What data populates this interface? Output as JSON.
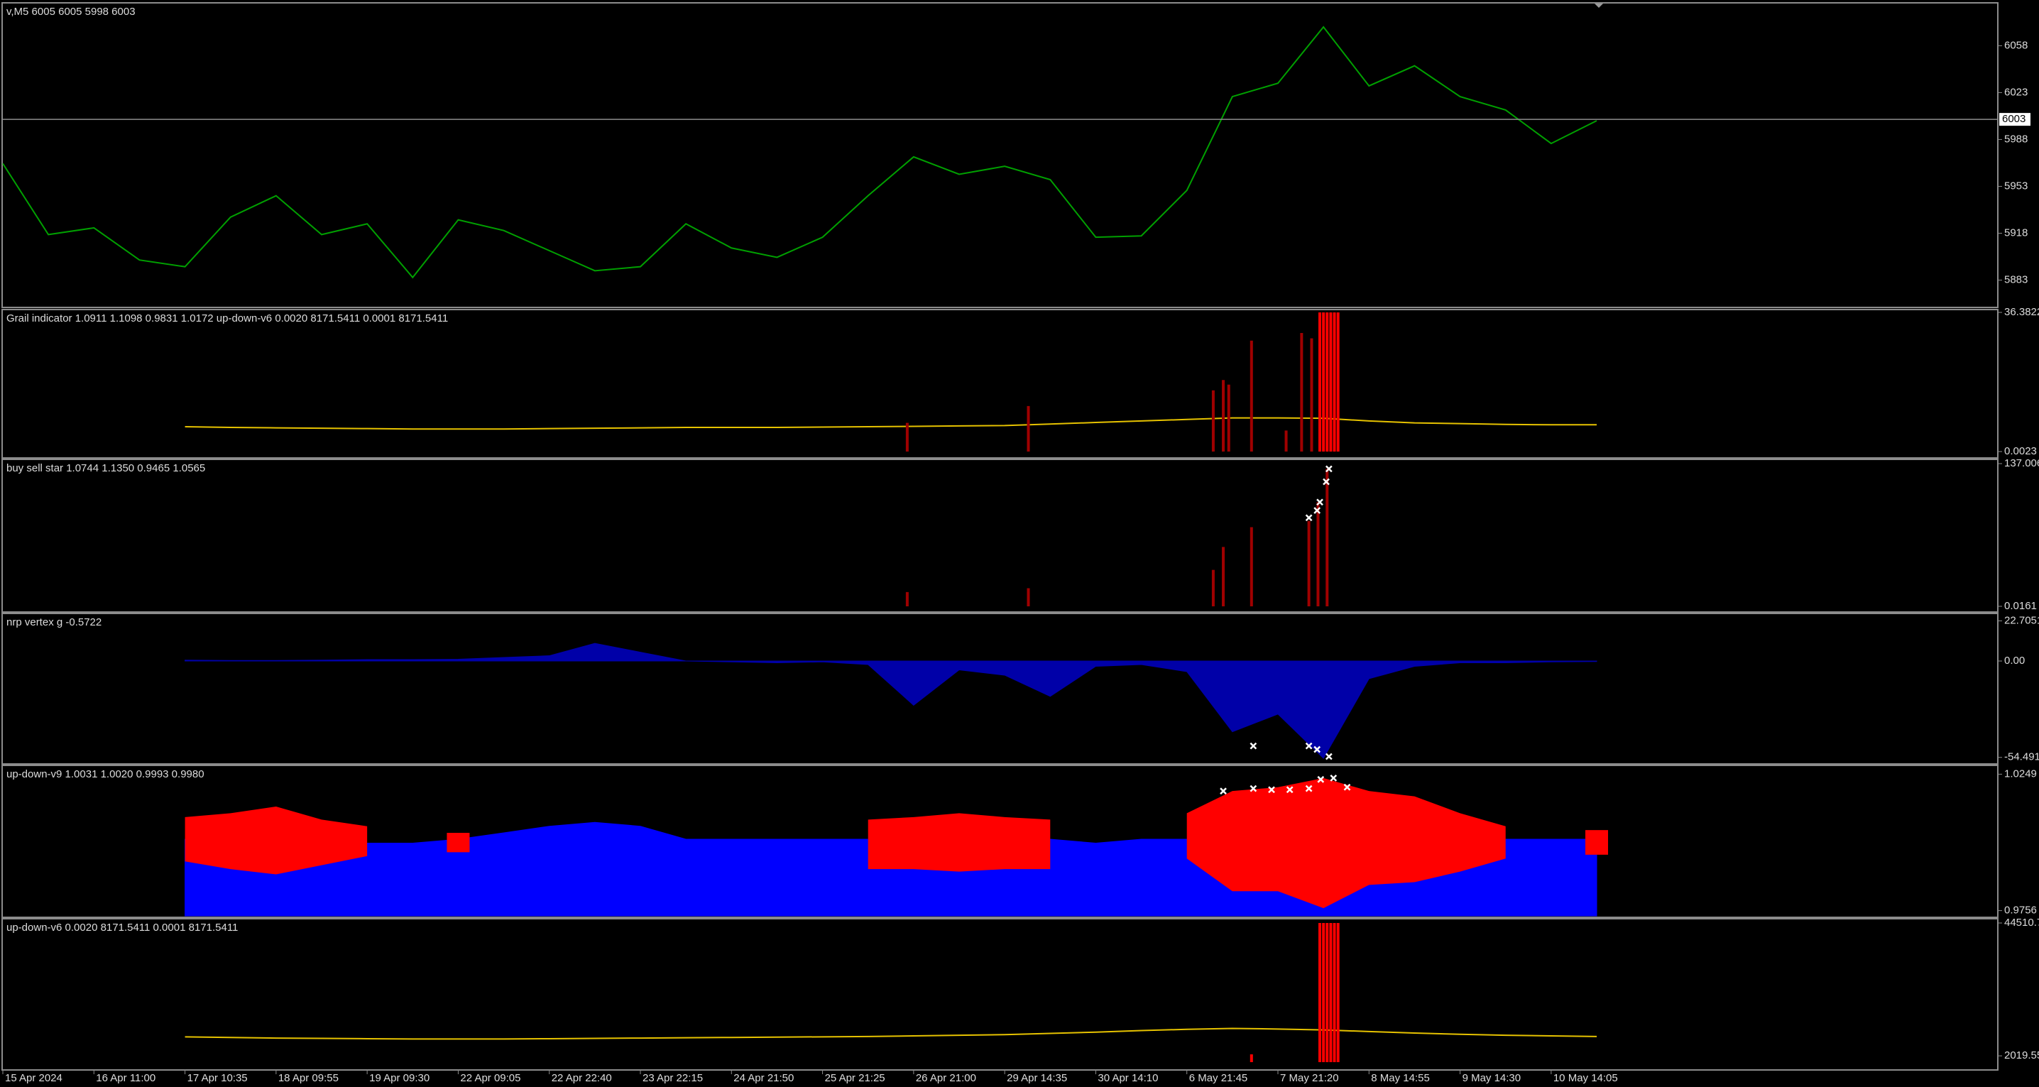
{
  "chart_data": [
    {
      "type": "line",
      "title": "v,M5  6005 6005 5998 6003",
      "x": [
        0,
        5,
        10,
        15,
        20,
        25,
        30,
        35,
        40,
        45,
        50,
        55,
        60,
        65,
        70,
        75,
        80,
        85,
        90,
        95,
        100,
        105,
        110,
        115,
        120,
        125,
        130,
        135,
        140,
        145,
        150,
        155,
        160,
        165,
        170,
        175
      ],
      "series": [
        {
          "type": "line",
          "color": "#00a000",
          "values": [
            5970,
            5917,
            5922,
            5898,
            5893,
            5930,
            5946,
            5917,
            5925,
            5885,
            5928,
            5920,
            5905,
            5890,
            5893,
            5925,
            5907,
            5900,
            5915,
            5946,
            5975,
            5962,
            5968,
            5958,
            5915,
            5916,
            5950,
            6020,
            6030,
            6072,
            6028,
            6043,
            6020,
            6010,
            5985,
            6002
          ]
        }
      ],
      "last_price": 6003,
      "ylim": [
        5862.6,
        6090
      ],
      "yticks": [
        5883,
        5918,
        5953,
        5988,
        6023,
        6058
      ],
      "xlim": [
        0,
        175
      ],
      "xticks": [
        {
          "value": 0,
          "label": "15 Apr 2024"
        },
        {
          "value": 10,
          "label": "16 Apr 11:00"
        },
        {
          "value": 20,
          "label": "17 Apr 10:35"
        },
        {
          "value": 30,
          "label": "18 Apr 09:55"
        },
        {
          "value": 40,
          "label": "19 Apr 09:30"
        },
        {
          "value": 50,
          "label": "22 Apr 09:05"
        },
        {
          "value": 60,
          "label": "22 Apr 22:40"
        },
        {
          "value": 70,
          "label": "23 Apr 22:15"
        },
        {
          "value": 80,
          "label": "24 Apr 21:50"
        },
        {
          "value": 90,
          "label": "25 Apr 21:25"
        },
        {
          "value": 100,
          "label": "26 Apr 21:00"
        },
        {
          "value": 110,
          "label": "29 Apr 14:35"
        },
        {
          "value": 120,
          "label": "30 Apr 14:10"
        },
        {
          "value": 130,
          "label": "6 May 21:45"
        },
        {
          "value": 140,
          "label": "7 May 21:20"
        },
        {
          "value": 150,
          "label": "8 May 14:55"
        },
        {
          "value": 160,
          "label": "9 May 14:30"
        },
        {
          "value": 170,
          "label": "10 May 14:05"
        }
      ]
    },
    {
      "type": "indicator",
      "title": "Grail indicator 1.0911 1.1098 0.9831 1.0172  up-down-v6 0.0020 8171.5411 0.0001 8171.5411",
      "x": [
        0,
        5,
        10,
        15,
        20,
        25,
        30,
        35,
        40,
        45,
        50,
        55,
        60,
        65,
        70,
        75,
        80,
        85,
        90,
        95,
        100,
        105,
        110,
        115,
        120,
        125,
        130,
        135,
        140,
        145,
        150,
        155,
        160,
        165,
        170,
        175
      ],
      "series": [
        {
          "type": "line",
          "color": "#e6c200",
          "values": [
            null,
            null,
            null,
            null,
            6.5,
            6.3,
            6.2,
            6.1,
            6.0,
            5.9,
            5.9,
            5.9,
            6.0,
            6.1,
            6.2,
            6.3,
            6.3,
            6.3,
            6.4,
            6.5,
            6.6,
            6.7,
            6.8,
            7.2,
            7.6,
            8.0,
            8.4,
            8.8,
            8.8,
            8.7,
            8.0,
            7.5,
            7.3,
            7.1,
            7.0,
            7.0
          ]
        },
        {
          "type": "bar",
          "color": "#a00000",
          "x": [
            99.3,
            112.6,
            132.9,
            134,
            134.6,
            137.1,
            140.9,
            142.6,
            143.7
          ],
          "values": [
            7.5,
            11.9,
            16,
            18.7,
            17.5,
            29,
            5.5,
            31,
            29.6
          ]
        },
        {
          "type": "bar",
          "color": "#ff0000",
          "x": [
            144.6,
            145,
            145.4,
            145.8,
            146.2,
            146.6
          ],
          "values": [
            36.3822,
            36.3822,
            36.3822,
            36.3822,
            36.3822,
            36.3822
          ]
        }
      ],
      "ylim": [
        0,
        36.3822
      ],
      "yticks": [
        0.0023,
        36.3822
      ]
    },
    {
      "type": "indicator",
      "title": "buy sell star 1.0744 1.1350 0.9465 1.0565",
      "series": [
        {
          "type": "bar",
          "color": "#a00000",
          "x": [
            99.3,
            112.6,
            132.9,
            134,
            137.1,
            143.4,
            144.4,
            145.4
          ],
          "values": [
            13.7,
            17.4,
            35,
            57,
            76,
            82,
            100,
            132
          ]
        },
        {
          "type": "marker",
          "color": "#ffffff",
          "x": [
            143.4,
            144.3,
            144.6,
            145.3,
            145.6
          ],
          "values": [
            85,
            92,
            100,
            119.6,
            132
          ]
        }
      ],
      "ylim": [
        0,
        137.006
      ],
      "yticks": [
        0.0161,
        137.006
      ]
    },
    {
      "type": "indicator",
      "title": "nrp vertex g -0.5722",
      "x": [
        0,
        5,
        10,
        15,
        20,
        25,
        30,
        35,
        40,
        45,
        50,
        55,
        60,
        65,
        70,
        75,
        80,
        85,
        90,
        95,
        100,
        105,
        110,
        115,
        120,
        125,
        130,
        135,
        140,
        145,
        150,
        155,
        160,
        165,
        170,
        175
      ],
      "series": [
        {
          "type": "area",
          "color": "#0000a8",
          "values": [
            null,
            null,
            null,
            null,
            0.5,
            0.3,
            0.3,
            0.5,
            0.8,
            0.8,
            1,
            2,
            3,
            10,
            5,
            0,
            -0.5,
            -1,
            -0.5,
            -2,
            -25,
            -5,
            -8,
            -20,
            -3,
            -2,
            -6,
            -40,
            -30,
            -55,
            -10,
            -3,
            -1,
            -1,
            -0.5,
            -0.3
          ]
        },
        {
          "type": "marker",
          "color": "#ffffff",
          "x": [
            137.3,
            143.4,
            144.3,
            145.6
          ],
          "values": [
            -48,
            -48,
            -50,
            -54
          ]
        }
      ],
      "ylim": [
        -57.4,
        25.7
      ],
      "yticks": [
        -54.4918,
        {
          "value": 0,
          "label": "0.00"
        },
        22.7051
      ]
    },
    {
      "type": "indicator",
      "title": "up-down-v9 1.0031 1.0020 0.9993 0.9980",
      "x": [
        0,
        5,
        10,
        15,
        20,
        25,
        30,
        35,
        40,
        45,
        50,
        55,
        60,
        65,
        70,
        75,
        80,
        85,
        90,
        95,
        100,
        105,
        110,
        115,
        120,
        125,
        130,
        135,
        140,
        145,
        150,
        155,
        160,
        165,
        170,
        175
      ],
      "series": [
        {
          "type": "area",
          "color": "#0000ff",
          "values": [
            null,
            null,
            null,
            null,
            1.0014,
            1.0,
            1.0005,
            0.999,
            1.0,
            1.0,
            1.0014,
            1.0037,
            1.0061,
            1.0075,
            1.0061,
            1.0014,
            1.0014,
            1.0014,
            1.0014,
            1.0014,
            1.0014,
            1.0014,
            1.0014,
            1.0014,
            1.0,
            1.0014,
            1.0014,
            1.0014,
            1.0014,
            1.0014,
            1.0014,
            1.0014,
            1.0014,
            1.0014,
            1.0014,
            1.0014
          ]
        },
        {
          "type": "band",
          "color": "#ff0000",
          "high": [
            null,
            null,
            null,
            null,
            1.0094,
            1.0108,
            1.0132,
            1.0085,
            1.0061,
            null,
            1.0037,
            null,
            null,
            null,
            null,
            null,
            null,
            null,
            null,
            1.0085,
            1.0094,
            1.0108,
            1.0094,
            1.0085,
            null,
            null,
            1.0108,
            1.0188,
            1.0202,
            1.0235,
            1.0188,
            1.0169,
            1.0108,
            1.0061,
            null,
            1.0047
          ],
          "low": [
            null,
            null,
            null,
            null,
            0.9934,
            0.9906,
            0.9887,
            0.992,
            0.9953,
            null,
            0.9967,
            null,
            null,
            null,
            null,
            null,
            null,
            null,
            null,
            0.9906,
            0.9906,
            0.9897,
            0.9906,
            0.9906,
            null,
            null,
            0.9944,
            0.9826,
            0.9826,
            0.9765,
            0.9849,
            0.9859,
            0.9897,
            0.9944,
            null,
            0.9958
          ]
        },
        {
          "type": "marker",
          "color": "#ffffff",
          "x": [
            134,
            137.3,
            139.3,
            141.3,
            143.4,
            144.7,
            146.1,
            147.6
          ],
          "values": [
            1.0188,
            1.0197,
            1.0193,
            1.0193,
            1.0197,
            1.023,
            1.0235,
            1.0202
          ]
        }
      ],
      "ylim": [
        0.9737,
        1.0268
      ],
      "yticks": [
        0.9756,
        1.0249
      ]
    },
    {
      "type": "indicator",
      "title": "up-down-v6 0.0020 8171.5411 0.0001 8171.5411",
      "x": [
        0,
        5,
        10,
        15,
        20,
        25,
        30,
        35,
        40,
        45,
        50,
        55,
        60,
        65,
        70,
        75,
        80,
        85,
        90,
        95,
        100,
        105,
        110,
        115,
        120,
        125,
        130,
        135,
        140,
        145,
        150,
        155,
        160,
        165,
        170,
        175
      ],
      "series": [
        {
          "type": "line",
          "color": "#e6c200",
          "values": [
            null,
            null,
            null,
            null,
            8100,
            7900,
            7700,
            7600,
            7500,
            7400,
            7400,
            7400,
            7500,
            7600,
            7700,
            7800,
            7900,
            8000,
            8100,
            8200,
            8400,
            8600,
            8800,
            9200,
            9600,
            10100,
            10500,
            10800,
            10600,
            10300,
            9800,
            9300,
            8900,
            8600,
            8400,
            8200
          ]
        },
        {
          "type": "bar",
          "color": "#ff0000",
          "x": [
            137.1,
            144.6,
            145,
            145.4,
            145.8,
            146.2,
            146.6
          ],
          "values": [
            2500,
            44510.7,
            44510.7,
            44510.7,
            44510.7,
            44510.7,
            44510.7
          ]
        }
      ],
      "ylim": [
        0,
        44510.7
      ],
      "yticks": [
        2019.55,
        44510.7
      ]
    }
  ]
}
